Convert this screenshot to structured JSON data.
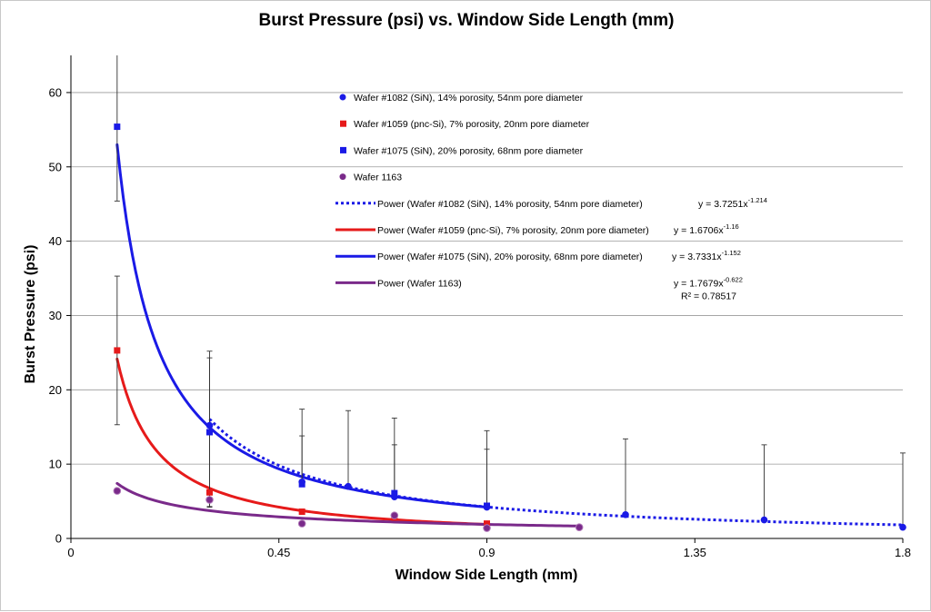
{
  "chart_data": {
    "type": "scatter",
    "title": "Burst Pressure (psi) vs. Window Side Length (mm)",
    "xlabel": "Window Side Length (mm)",
    "ylabel": "Burst Pressure (psi)",
    "xlim": [
      0,
      1.8
    ],
    "ylim": [
      0,
      65
    ],
    "x_ticks": [
      0,
      0.45,
      0.9,
      1.35,
      1.8
    ],
    "x_tick_labels": [
      "0",
      "0.45",
      "0.9",
      "1.35",
      "1.8"
    ],
    "y_ticks": [
      0,
      10,
      20,
      30,
      40,
      50,
      60
    ],
    "y_tick_labels": [
      "0",
      "10",
      "20",
      "30",
      "40",
      "50",
      "60"
    ],
    "grid": "horizontal",
    "legend_position": "inside-center-top",
    "series": [
      {
        "name": "Wafer #1082 (SiN), 14% porosity, 54nm pore diameter",
        "marker": "circle",
        "color": "#1a1ae6",
        "points": [
          {
            "x": 0.3,
            "y": 15.2,
            "err_hi": 10.0,
            "err_lo": 11.0
          },
          {
            "x": 0.5,
            "y": 7.6,
            "err_hi": 9.8,
            "err_lo": 0
          },
          {
            "x": 0.6,
            "y": 7.0,
            "err_hi": 10.2,
            "err_lo": 0
          },
          {
            "x": 0.7,
            "y": 5.6,
            "err_hi": 10.6,
            "err_lo": 0
          },
          {
            "x": 0.9,
            "y": 4.2,
            "err_hi": 10.3,
            "err_lo": 0
          },
          {
            "x": 1.2,
            "y": 3.2,
            "err_hi": 10.2,
            "err_lo": 0
          },
          {
            "x": 1.5,
            "y": 2.5,
            "err_hi": 10.1,
            "err_lo": 0
          },
          {
            "x": 1.8,
            "y": 1.5,
            "err_hi": 10.0,
            "err_lo": 0
          }
        ]
      },
      {
        "name": "Wafer #1059 (pnc-Si), 7% porosity, 20nm pore diameter",
        "marker": "square",
        "color": "#e61a1a",
        "points": [
          {
            "x": 0.1,
            "y": 25.3,
            "err_hi": 10.0,
            "err_lo": 10.0
          },
          {
            "x": 0.3,
            "y": 6.2,
            "err_hi": 0,
            "err_lo": 0
          },
          {
            "x": 0.5,
            "y": 3.6,
            "err_hi": 0,
            "err_lo": 0
          },
          {
            "x": 0.7,
            "y": 2.8,
            "err_hi": 0,
            "err_lo": 0
          },
          {
            "x": 0.9,
            "y": 2.0,
            "err_hi": 0,
            "err_lo": 0
          }
        ]
      },
      {
        "name": "Wafer #1075 (SiN), 20% porosity, 68nm pore diameter",
        "marker": "square",
        "color": "#1a1ae6",
        "points": [
          {
            "x": 0.1,
            "y": 55.4,
            "err_hi": 10.0,
            "err_lo": 10.0
          },
          {
            "x": 0.3,
            "y": 14.3,
            "err_hi": 10.0,
            "err_lo": 10.0
          },
          {
            "x": 0.5,
            "y": 7.3,
            "err_hi": 6.5,
            "err_lo": 0
          },
          {
            "x": 0.7,
            "y": 6.1,
            "err_hi": 6.5,
            "err_lo": 0
          },
          {
            "x": 0.9,
            "y": 4.4,
            "err_hi": 7.6,
            "err_lo": 0
          }
        ]
      },
      {
        "name": "Wafer 1163",
        "marker": "circle",
        "color": "#7a2a8a",
        "points": [
          {
            "x": 0.1,
            "y": 6.4
          },
          {
            "x": 0.3,
            "y": 5.2
          },
          {
            "x": 0.5,
            "y": 2.0
          },
          {
            "x": 0.7,
            "y": 3.1
          },
          {
            "x": 0.9,
            "y": 1.4
          },
          {
            "x": 1.1,
            "y": 1.5
          }
        ]
      }
    ],
    "trendlines": [
      {
        "name": "Power (Wafer #1082 (SiN), 14% porosity, 54nm pore diameter)",
        "color": "#1a1ae6",
        "style": "dotted",
        "a": 3.7251,
        "b": -1.214,
        "x_range": [
          0.3,
          1.8
        ],
        "equation": "y = 3.7251x",
        "exponent": "-1.214",
        "r2": ""
      },
      {
        "name": "Power (Wafer #1059 (pnc-Si), 7% porosity, 20nm pore diameter)",
        "color": "#e61a1a",
        "style": "solid",
        "a": 1.6706,
        "b": -1.16,
        "x_range": [
          0.1,
          0.9
        ],
        "equation": "y = 1.6706x",
        "exponent": "-1.16",
        "r2": ""
      },
      {
        "name": "Power (Wafer #1075 (SiN), 20% porosity, 68nm pore diameter)",
        "color": "#1a1ae6",
        "style": "solid",
        "a": 3.7331,
        "b": -1.152,
        "x_range": [
          0.1,
          0.9
        ],
        "equation": "y = 3.7331x",
        "exponent": "-1.152",
        "r2": ""
      },
      {
        "name": "Power (Wafer 1163)",
        "color": "#7a2a8a",
        "style": "solid",
        "a": 1.7679,
        "b": -0.622,
        "x_range": [
          0.1,
          1.1
        ],
        "equation": "y = 1.7679x",
        "exponent": "-0.622",
        "r2": "R² = 0.78517"
      }
    ]
  }
}
